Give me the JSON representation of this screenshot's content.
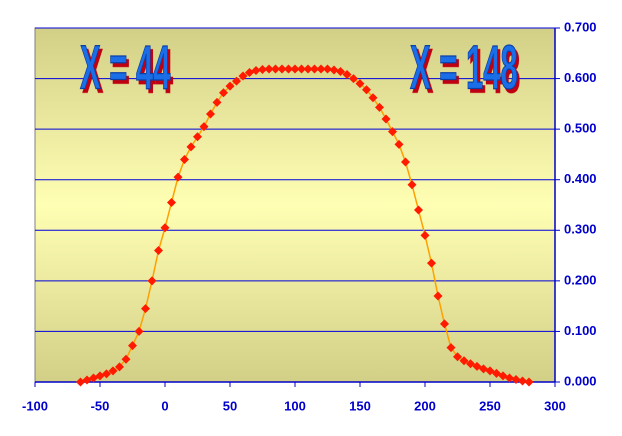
{
  "chart_data": {
    "type": "line",
    "annotations": [
      "X = 44",
      "X = 148"
    ],
    "x": [
      -65,
      -60,
      -55,
      -50,
      -45,
      -40,
      -35,
      -30,
      -25,
      -20,
      -15,
      -10,
      -5,
      0,
      5,
      10,
      15,
      20,
      25,
      30,
      35,
      40,
      45,
      50,
      55,
      60,
      65,
      70,
      75,
      80,
      85,
      90,
      95,
      100,
      105,
      110,
      115,
      120,
      125,
      130,
      135,
      140,
      145,
      150,
      155,
      160,
      165,
      170,
      175,
      180,
      185,
      190,
      195,
      200,
      205,
      210,
      215,
      220,
      225,
      230,
      235,
      240,
      245,
      250,
      255,
      260,
      265,
      270,
      275,
      280
    ],
    "series": [
      {
        "color": "#ff1a00",
        "line_color": "#ffa000",
        "values": [
          0.0,
          0.004,
          0.008,
          0.012,
          0.016,
          0.022,
          0.03,
          0.045,
          0.072,
          0.1,
          0.145,
          0.2,
          0.26,
          0.305,
          0.355,
          0.405,
          0.44,
          0.465,
          0.485,
          0.505,
          0.53,
          0.553,
          0.572,
          0.585,
          0.595,
          0.605,
          0.612,
          0.616,
          0.618,
          0.619,
          0.619,
          0.619,
          0.619,
          0.619,
          0.619,
          0.619,
          0.619,
          0.619,
          0.619,
          0.617,
          0.614,
          0.608,
          0.6,
          0.59,
          0.578,
          0.562,
          0.543,
          0.52,
          0.495,
          0.47,
          0.435,
          0.39,
          0.34,
          0.29,
          0.235,
          0.17,
          0.115,
          0.068,
          0.05,
          0.042,
          0.036,
          0.031,
          0.026,
          0.022,
          0.017,
          0.012,
          0.008,
          0.005,
          0.002,
          0.0
        ]
      }
    ],
    "xlim": [
      -100,
      300
    ],
    "xticks": [
      -100,
      -50,
      0,
      50,
      100,
      150,
      200,
      250,
      300
    ],
    "ylim": [
      0,
      0.7
    ],
    "yticks": [
      {
        "value": 0,
        "label": "0.000"
      },
      {
        "value": 0.1,
        "label": "0.100"
      },
      {
        "value": 0.2,
        "label": "0.200"
      },
      {
        "value": 0.3,
        "label": "0.300"
      },
      {
        "value": 0.4,
        "label": "0.400"
      },
      {
        "value": 0.5,
        "label": "0.500"
      },
      {
        "value": 0.6,
        "label": "0.600"
      },
      {
        "value": 0.7,
        "label": "0.700"
      }
    ],
    "grid": true,
    "y_axis_side": "right"
  }
}
